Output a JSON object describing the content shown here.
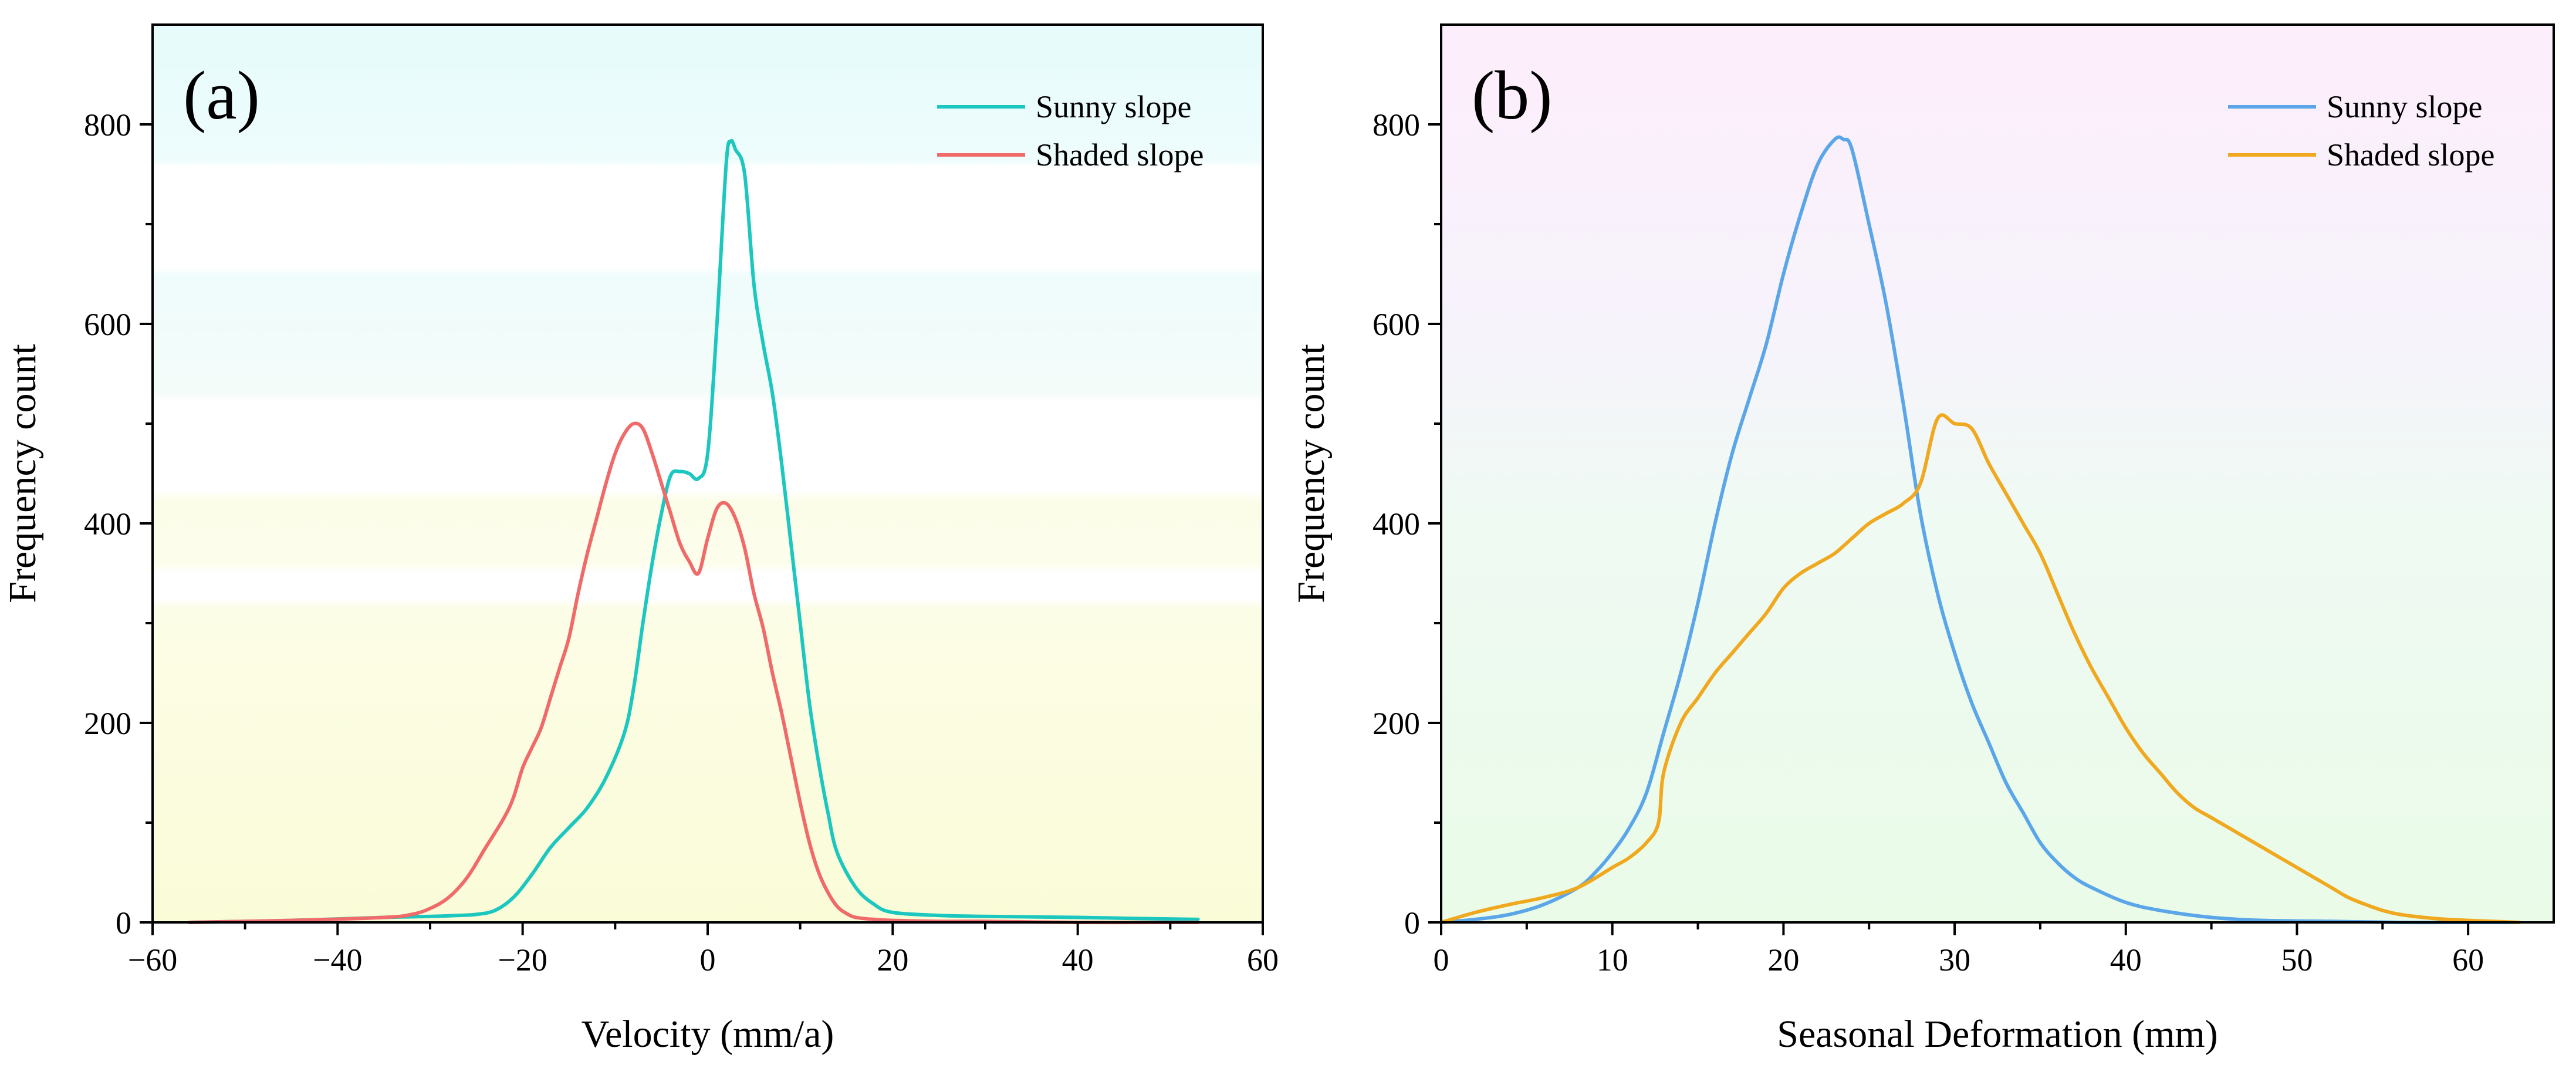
{
  "chart_data": [
    {
      "type": "line",
      "panel_label": "(a)",
      "xlabel": "Velocity (mm/a)",
      "ylabel": "Frequency count",
      "xlim": [
        -60,
        60
      ],
      "ylim": [
        0,
        900
      ],
      "xticks": [
        -60,
        -40,
        -20,
        0,
        20,
        40,
        60
      ],
      "xtick_labels": [
        "−60",
        "−40",
        "−20",
        "0",
        "20",
        "40",
        "60"
      ],
      "yticks": [
        0,
        200,
        400,
        600,
        800
      ],
      "ytick_labels": [
        "0",
        "200",
        "400",
        "600",
        "800"
      ],
      "grid": false,
      "legend": "top-right",
      "background": "blue-to-yellow banded gradient",
      "series": [
        {
          "name": "Sunny slope",
          "color": "#1cc7c0",
          "x": [
            -56,
            -45,
            -35,
            -30,
            -27,
            -25,
            -23,
            -21,
            -19,
            -17,
            -15,
            -13,
            -11,
            -9,
            -8,
            -7,
            -6,
            -5,
            -4,
            -3,
            -2,
            -1,
            0,
            1,
            2,
            2.5,
            3,
            4,
            5,
            6,
            7,
            8,
            9,
            10,
            11,
            12,
            13,
            14,
            16,
            18,
            20,
            25,
            30,
            40,
            46,
            53
          ],
          "y": [
            0,
            2,
            5,
            6,
            7,
            8,
            12,
            25,
            48,
            75,
            95,
            115,
            145,
            190,
            235,
            300,
            360,
            410,
            448,
            452,
            450,
            445,
            470,
            600,
            760,
            783,
            775,
            750,
            640,
            580,
            530,
            460,
            380,
            300,
            220,
            160,
            110,
            70,
            35,
            18,
            10,
            7,
            6,
            5,
            4,
            3
          ]
        },
        {
          "name": "Shaded slope",
          "color": "#f06a6a",
          "x": [
            -56,
            -45,
            -35,
            -32,
            -30,
            -28,
            -26,
            -24,
            -22,
            -21,
            -20,
            -19,
            -18,
            -17,
            -16,
            -15,
            -14,
            -13,
            -12,
            -11,
            -10,
            -9,
            -8,
            -7,
            -6,
            -5,
            -4,
            -3,
            -2,
            -1,
            0,
            1,
            2,
            3,
            4,
            5,
            6,
            7,
            8,
            9,
            10,
            11,
            12,
            13,
            14,
            15,
            16,
            18,
            20,
            25,
            30,
            40,
            50,
            53
          ],
          "y": [
            0,
            2,
            5,
            8,
            14,
            25,
            45,
            75,
            105,
            125,
            155,
            175,
            195,
            225,
            255,
            285,
            330,
            370,
            405,
            440,
            470,
            490,
            500,
            495,
            470,
            440,
            410,
            380,
            362,
            350,
            385,
            415,
            420,
            405,
            375,
            330,
            295,
            250,
            210,
            165,
            120,
            80,
            50,
            30,
            16,
            9,
            5,
            3,
            2,
            1,
            1,
            0,
            0,
            0
          ]
        }
      ]
    },
    {
      "type": "line",
      "panel_label": "(b)",
      "xlabel": "Seasonal Deformation (mm)",
      "ylabel": "Frequency count",
      "xlim": [
        0,
        65
      ],
      "ylim": [
        0,
        900
      ],
      "xticks": [
        0,
        10,
        20,
        30,
        40,
        50,
        60
      ],
      "xtick_labels": [
        "0",
        "10",
        "20",
        "30",
        "40",
        "50",
        "60"
      ],
      "yticks": [
        0,
        200,
        400,
        600,
        800
      ],
      "ytick_labels": [
        "0",
        "200",
        "400",
        "600",
        "800"
      ],
      "grid": false,
      "legend": "top-right",
      "background": "pink-to-green gradient",
      "series": [
        {
          "name": "Sunny slope",
          "color": "#5aa6e8",
          "x": [
            0,
            2,
            4,
            6,
            8,
            9,
            10,
            11,
            12,
            13,
            14,
            15,
            16,
            17,
            18,
            19,
            20,
            21,
            22,
            23,
            23.5,
            24,
            25,
            26,
            27,
            28,
            29,
            30,
            31,
            32,
            33,
            34,
            35,
            36,
            37,
            38,
            40,
            42,
            45,
            48,
            52,
            56,
            60,
            63
          ],
          "y": [
            0,
            3,
            8,
            18,
            35,
            50,
            70,
            95,
            130,
            190,
            250,
            320,
            400,
            470,
            525,
            580,
            650,
            710,
            760,
            785,
            785,
            775,
            700,
            620,
            520,
            410,
            330,
            270,
            220,
            180,
            140,
            110,
            80,
            60,
            45,
            35,
            20,
            12,
            5,
            2,
            1,
            0,
            0,
            0
          ]
        },
        {
          "name": "Shaded slope",
          "color": "#f0a81e",
          "x": [
            0,
            2,
            4,
            6,
            8,
            10,
            11,
            12,
            12.7,
            13,
            14,
            15,
            16,
            17,
            18,
            19,
            20,
            21,
            22,
            23,
            24,
            25,
            26,
            27,
            28,
            29,
            30,
            31,
            32,
            33,
            34,
            35,
            36,
            37,
            38,
            39,
            40,
            41,
            42,
            43,
            44,
            45,
            46,
            47,
            48,
            49,
            50,
            51,
            52,
            53,
            54,
            55,
            56,
            58,
            60,
            63
          ],
          "y": [
            0,
            10,
            18,
            25,
            35,
            55,
            65,
            80,
            100,
            150,
            200,
            225,
            250,
            270,
            290,
            310,
            335,
            350,
            360,
            370,
            385,
            400,
            410,
            420,
            440,
            505,
            500,
            495,
            460,
            430,
            400,
            370,
            330,
            290,
            255,
            225,
            195,
            170,
            150,
            130,
            115,
            105,
            95,
            85,
            75,
            65,
            55,
            45,
            35,
            25,
            18,
            12,
            8,
            4,
            2,
            0
          ]
        }
      ]
    }
  ]
}
